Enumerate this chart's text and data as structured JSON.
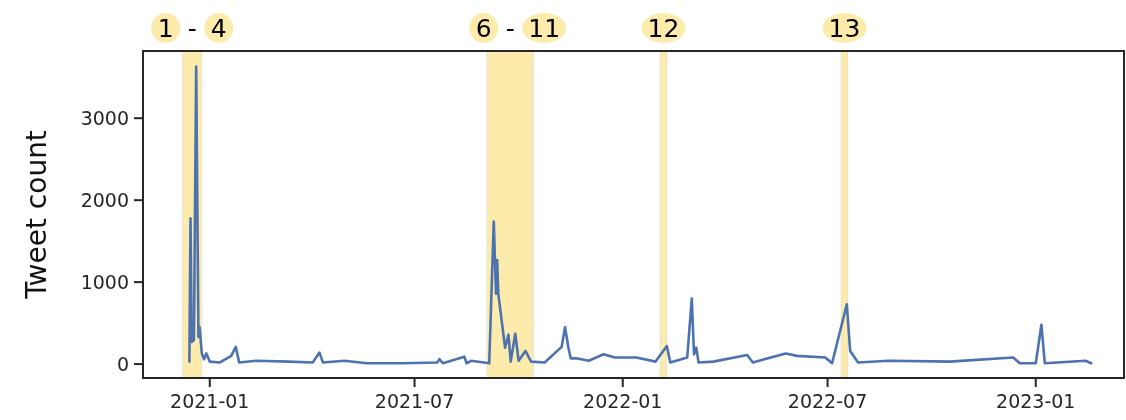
{
  "chart_data": {
    "type": "line",
    "ylabel": "Tweet count",
    "xlim": [
      "2020-11-03",
      "2023-03-20"
    ],
    "ylim": [
      -170,
      3820
    ],
    "xticks": [
      "2021-01",
      "2021-07",
      "2022-01",
      "2022-07",
      "2023-01"
    ],
    "yticks": [
      0,
      1000,
      2000,
      3000
    ],
    "grid": false,
    "marker": "none",
    "line_style": "solid",
    "bands": [
      {
        "axis": "x",
        "from": "2020-12-08",
        "to": "2020-12-25",
        "label": "1 - 4",
        "color": "#fcebaa"
      },
      {
        "axis": "x",
        "from": "2021-09-03",
        "to": "2021-10-14",
        "label": "6 - 11",
        "color": "#fcebaa"
      },
      {
        "axis": "x",
        "from": "2022-02-03",
        "to": "2022-02-09",
        "label": "12",
        "color": "#fcebaa"
      },
      {
        "axis": "x",
        "from": "2022-07-13",
        "to": "2022-07-19",
        "label": "13",
        "color": "#fcebaa"
      }
    ],
    "series": [
      {
        "color": "#4c72b0",
        "x": [
          "2020-12-14",
          "2020-12-15",
          "2020-12-16",
          "2020-12-18",
          "2020-12-20",
          "2020-12-22",
          "2020-12-23",
          "2020-12-25",
          "2020-12-27",
          "2020-12-29",
          "2021-01-01",
          "2021-01-10",
          "2021-01-20",
          "2021-01-24",
          "2021-01-27",
          "2021-02-11",
          "2021-03-12",
          "2021-04-02",
          "2021-04-08",
          "2021-04-11",
          "2021-04-30",
          "2021-05-20",
          "2021-06-20",
          "2021-07-21",
          "2021-07-23",
          "2021-07-26",
          "2021-08-14",
          "2021-08-16",
          "2021-08-20",
          "2021-09-05",
          "2021-09-09",
          "2021-09-11",
          "2021-09-12",
          "2021-09-13",
          "2021-09-16",
          "2021-09-19",
          "2021-09-22",
          "2021-09-24",
          "2021-09-28",
          "2021-10-01",
          "2021-10-07",
          "2021-10-12",
          "2021-10-24",
          "2021-11-08",
          "2021-11-11",
          "2021-11-14",
          "2021-11-16",
          "2021-11-21",
          "2021-12-02",
          "2021-12-15",
          "2021-12-25",
          "2022-01-13",
          "2022-01-30",
          "2022-02-09",
          "2022-02-12",
          "2022-02-27",
          "2022-03-03",
          "2022-03-05",
          "2022-03-07",
          "2022-03-09",
          "2022-03-22",
          "2022-04-21",
          "2022-04-26",
          "2022-05-25",
          "2022-06-04",
          "2022-06-29",
          "2022-07-05",
          "2022-07-18",
          "2022-07-21",
          "2022-07-28",
          "2022-08-24",
          "2022-10-17",
          "2022-12-12",
          "2022-12-18",
          "2023-01-01",
          "2023-01-06",
          "2023-01-09",
          "2023-02-14",
          "2023-02-19"
        ],
        "values": [
          30,
          1780,
          270,
          290,
          3630,
          330,
          450,
          130,
          60,
          130,
          30,
          20,
          100,
          210,
          20,
          40,
          30,
          20,
          140,
          20,
          40,
          10,
          10,
          20,
          60,
          10,
          90,
          10,
          40,
          10,
          1740,
          860,
          1270,
          860,
          530,
          200,
          360,
          30,
          370,
          40,
          160,
          30,
          20,
          210,
          450,
          200,
          70,
          70,
          40,
          120,
          80,
          80,
          30,
          220,
          20,
          80,
          800,
          120,
          200,
          20,
          30,
          110,
          20,
          130,
          100,
          80,
          10,
          730,
          160,
          20,
          40,
          30,
          80,
          10,
          10,
          480,
          10,
          40,
          10
        ]
      }
    ]
  }
}
